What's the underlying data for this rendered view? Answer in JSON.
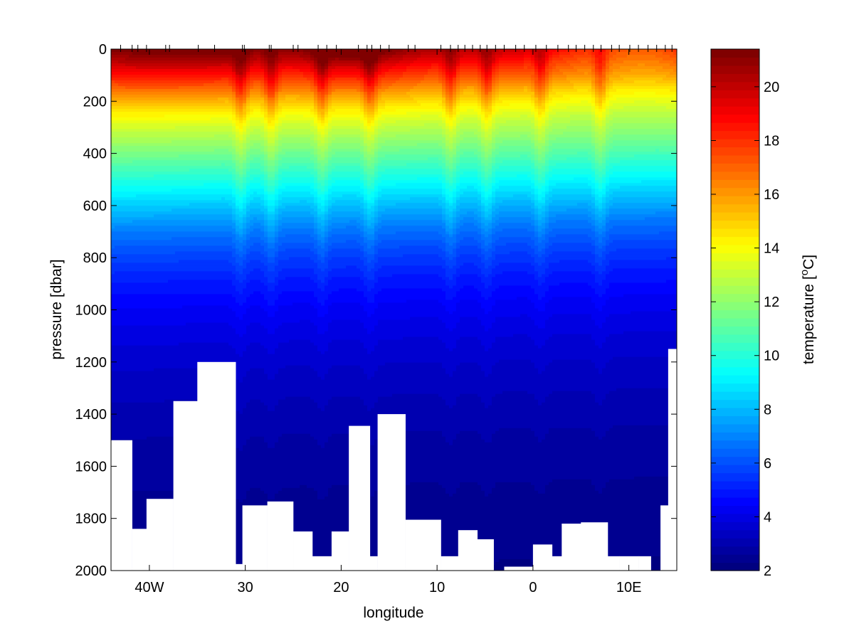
{
  "chart_data": {
    "type": "heatmap",
    "title": "",
    "xlabel": "longitude",
    "ylabel": "pressure [dbar]",
    "colorbar_label": "temperature [",
    "colorbar_unit_sup": "o",
    "colorbar_unit_end": "C]",
    "xlim": [
      -44,
      15
    ],
    "ylim": [
      2000,
      0
    ],
    "x_ticks": [
      {
        "value": -40,
        "label": "40W"
      },
      {
        "value": -30,
        "label": "30"
      },
      {
        "value": -20,
        "label": "20"
      },
      {
        "value": -10,
        "label": "10"
      },
      {
        "value": 0,
        "label": "0"
      },
      {
        "value": 10,
        "label": "10E"
      }
    ],
    "y_ticks": [
      0,
      200,
      400,
      600,
      800,
      1000,
      1200,
      1400,
      1600,
      1800,
      2000
    ],
    "y_tick_labels": [
      "0",
      "200",
      "400",
      "600",
      "800",
      "1000",
      "1200",
      "1400",
      "1600",
      "1800",
      "2000"
    ],
    "colorbar_range": [
      2,
      21.4
    ],
    "colorbar_ticks": [
      2,
      4,
      6,
      8,
      10,
      12,
      14,
      16,
      18,
      20
    ],
    "colorbar_tick_labels": [
      "2",
      "4",
      "6",
      "8",
      "10",
      "12",
      "14",
      "16",
      "18",
      "20"
    ],
    "colormap": "jet",
    "station_longitudes": [
      -43,
      -41.8,
      -41.2,
      -40.3,
      -38.3,
      -37.9,
      -34.9,
      -33.2,
      -30.3,
      -30.1,
      -27.5,
      -27.3,
      -25,
      -24.5,
      -22.4,
      -21.5,
      -20.5,
      -18.2,
      -17.3,
      -16.8,
      -15.9,
      -15,
      -13,
      -12.3,
      -9.6,
      -8.6,
      -7.8,
      -7.1,
      -6.3,
      -5.5,
      -4.8,
      -3.9,
      -3,
      -1.8,
      -0.9,
      0.3,
      1.4,
      2.6,
      3.7,
      4.5,
      5.4,
      6.3,
      7.1,
      8.2,
      9,
      10.1,
      11,
      12,
      12.9,
      13.8,
      14.5
    ],
    "section_temperature": {
      "pressure_levels": [
        0,
        50,
        100,
        150,
        200,
        250,
        300,
        400,
        500,
        600,
        700,
        800,
        900,
        1000,
        1100,
        1200,
        1300,
        1400,
        1500,
        1600,
        1700,
        1800,
        1900,
        2000
      ],
      "base_profile": [
        20.8,
        19.8,
        18.3,
        16.9,
        15.4,
        14.2,
        13.2,
        11.6,
        10.0,
        8.4,
        6.9,
        5.8,
        5.0,
        4.4,
        3.95,
        3.6,
        3.35,
        3.1,
        2.9,
        2.75,
        2.6,
        2.5,
        2.4,
        2.3
      ],
      "surface_warm_anomaly": [
        {
          "longitude": -40,
          "amount": 0.8
        },
        {
          "longitude": -33,
          "amount": 1.0
        },
        {
          "longitude": -20,
          "amount": 1.2
        },
        {
          "longitude": -17,
          "amount": 0.8
        },
        {
          "longitude": 5,
          "amount": -1.5
        },
        {
          "longitude": 12,
          "amount": -2.4
        }
      ],
      "upwelled_troughs": [
        -30.5,
        -27.3,
        -22,
        -17,
        -8.6,
        -4.8,
        0.8,
        7
      ]
    },
    "bathymetry": [
      {
        "x0": -44,
        "x1": -41.8,
        "depth": 1500
      },
      {
        "x0": -41.8,
        "x1": -40.3,
        "depth": 1840
      },
      {
        "x0": -40.3,
        "x1": -37.5,
        "depth": 1725
      },
      {
        "x0": -37.5,
        "x1": -35,
        "depth": 1350
      },
      {
        "x0": -35,
        "x1": -31,
        "depth": 1200
      },
      {
        "x0": -31,
        "x1": -30.3,
        "depth": 1975
      },
      {
        "x0": -30.3,
        "x1": -27.7,
        "depth": 1750
      },
      {
        "x0": -27.7,
        "x1": -25,
        "depth": 1735
      },
      {
        "x0": -25,
        "x1": -23,
        "depth": 1850
      },
      {
        "x0": -23,
        "x1": -21,
        "depth": 1945
      },
      {
        "x0": -21,
        "x1": -19.2,
        "depth": 1850
      },
      {
        "x0": -19.2,
        "x1": -17,
        "depth": 1445
      },
      {
        "x0": -17,
        "x1": -16.2,
        "depth": 1945
      },
      {
        "x0": -16.2,
        "x1": -13.3,
        "depth": 1400
      },
      {
        "x0": -13.3,
        "x1": -9.6,
        "depth": 1805
      },
      {
        "x0": -9.6,
        "x1": -7.8,
        "depth": 1945
      },
      {
        "x0": -7.8,
        "x1": -5.8,
        "depth": 1845
      },
      {
        "x0": -5.8,
        "x1": -4.1,
        "depth": 1880
      },
      {
        "x0": -4.1,
        "x1": -3,
        "depth": 2000
      },
      {
        "x0": -3,
        "x1": 0,
        "depth": 1985
      },
      {
        "x0": 0,
        "x1": 2,
        "depth": 1900
      },
      {
        "x0": 2,
        "x1": 3,
        "depth": 1945
      },
      {
        "x0": 3,
        "x1": 5,
        "depth": 1820
      },
      {
        "x0": 5,
        "x1": 7.8,
        "depth": 1815
      },
      {
        "x0": 7.8,
        "x1": 9,
        "depth": 1945
      },
      {
        "x0": 9,
        "x1": 11,
        "depth": 1945
      },
      {
        "x0": 11,
        "x1": 12.3,
        "depth": 1945
      },
      {
        "x0": 12.3,
        "x1": 13.3,
        "depth": 2000
      },
      {
        "x0": 13.3,
        "x1": 14.1,
        "depth": 1750
      },
      {
        "x0": 14.1,
        "x1": 15,
        "depth": 1150
      }
    ]
  }
}
